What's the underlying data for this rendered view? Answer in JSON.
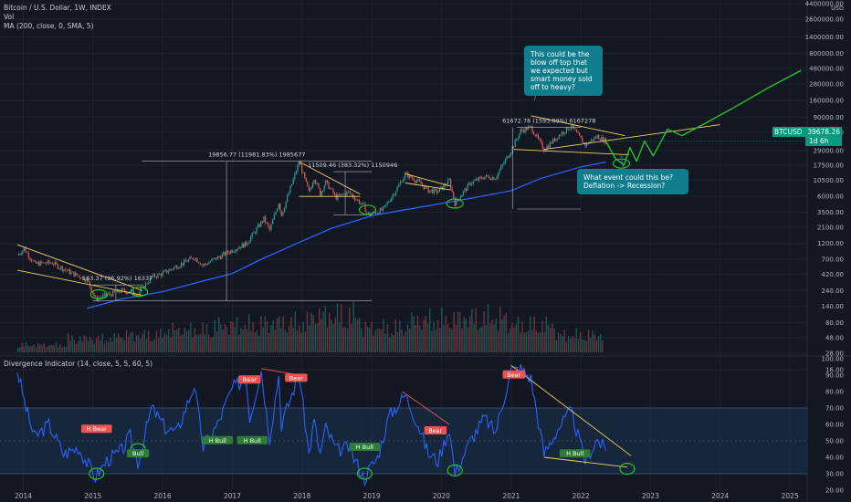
{
  "header": {
    "symbol_line": "Bitcoin / U.S. Dollar, 1W, INDEX",
    "vol_label": "Vol",
    "ma_label": "MA (200, close, 0, SMA, 5)",
    "indicator_label": "Divergence Indicator (14, close, 5, 5, 60, 5)"
  },
  "price_badge": {
    "symbol": "BTCUSD",
    "price": "39678.26",
    "timer": "1d 6h",
    "color": "#089981"
  },
  "callouts": [
    {
      "text": "This could be the blow off top that we expected but smart money sold off to heavy?"
    },
    {
      "text": "What event could this be? Deflation -> Recession?"
    }
  ],
  "measurements": [
    {
      "text": "163.37 (96.92%) 16337"
    },
    {
      "text": "19856.77 (11981.83%) 1985677"
    },
    {
      "text": "11509.46 (383.32%) 1150946"
    },
    {
      "text": "61672.78 (1593.09%) 6167278"
    }
  ],
  "osc_tags": [
    {
      "text": "H Bear",
      "kind": "bear"
    },
    {
      "text": "Bull",
      "kind": "bull"
    },
    {
      "text": "Bear",
      "kind": "bear"
    },
    {
      "text": "Bear",
      "kind": "bear"
    },
    {
      "text": "H Bull",
      "kind": "bull"
    },
    {
      "text": "H Bull",
      "kind": "bull"
    },
    {
      "text": "H Bull",
      "kind": "bull"
    },
    {
      "text": "Bear",
      "kind": "bear"
    },
    {
      "text": "Bear",
      "kind": "bear"
    },
    {
      "text": "H Bull",
      "kind": "bull"
    }
  ],
  "colors": {
    "background": "#131722",
    "up": "#26a69a",
    "down": "#ef5350",
    "ma": "#2962ff",
    "osc_line": "#2962ff",
    "projection": "#22c32a",
    "trendline": "#f0d264",
    "callout": "#0f7d8c",
    "bear_tag": "#ef5350",
    "bull_tag": "#2e7d32"
  },
  "chart_data": [
    {
      "type": "line",
      "title": "Bitcoin / U.S. Dollar, 1W, INDEX",
      "scale": "log",
      "xlabel": "",
      "ylabel": "",
      "y_unit": "USD",
      "x_ticks": [
        "2014",
        "2015",
        "2016",
        "2017",
        "2018",
        "2019",
        "2020",
        "2021",
        "2022",
        "2023",
        "2024",
        "2025"
      ],
      "y_ticks": [
        "4400000.00",
        "2600000.00",
        "1400000.00",
        "800000.00",
        "480000.00",
        "280000.00",
        "160000.00",
        "90000.00",
        "54000.00",
        "29000.00",
        "17500.00",
        "10500.00",
        "6000.00",
        "3500.00",
        "2100.00",
        "1200.00",
        "700.00",
        "420.00",
        "240.00",
        "140.00",
        "80.00",
        "48.00",
        "28.00",
        "16.00"
      ],
      "ylim": [
        10,
        4400000
      ],
      "series": [
        {
          "name": "BTCUSD",
          "points": [
            [
              "2013-12-01",
              800
            ],
            [
              "2014-01-05",
              1000
            ],
            [
              "2014-03-01",
              600
            ],
            [
              "2014-06-01",
              620
            ],
            [
              "2014-09-01",
              450
            ],
            [
              "2014-12-01",
              350
            ],
            [
              "2015-01-15",
              180
            ],
            [
              "2015-06-01",
              240
            ],
            [
              "2015-08-25",
              215
            ],
            [
              "2015-11-05",
              380
            ],
            [
              "2016-01-01",
              430
            ],
            [
              "2016-06-15",
              750
            ],
            [
              "2016-08-01",
              570
            ],
            [
              "2016-12-31",
              960
            ],
            [
              "2017-03-15",
              1200
            ],
            [
              "2017-06-15",
              2800
            ],
            [
              "2017-07-15",
              1900
            ],
            [
              "2017-09-01",
              4900
            ],
            [
              "2017-09-15",
              3200
            ],
            [
              "2017-12-17",
              19700
            ],
            [
              "2018-02-06",
              6900
            ],
            [
              "2018-03-05",
              11500
            ],
            [
              "2018-04-06",
              6600
            ],
            [
              "2018-05-05",
              9800
            ],
            [
              "2018-06-29",
              5800
            ],
            [
              "2018-09-01",
              7000
            ],
            [
              "2018-11-20",
              4300
            ],
            [
              "2018-12-15",
              3200
            ],
            [
              "2019-03-01",
              3800
            ],
            [
              "2019-05-15",
              8000
            ],
            [
              "2019-06-26",
              13000
            ],
            [
              "2019-09-01",
              10000
            ],
            [
              "2019-10-25",
              7400
            ],
            [
              "2019-12-15",
              7100
            ],
            [
              "2020-02-12",
              10300
            ],
            [
              "2020-03-12",
              4800
            ],
            [
              "2020-06-01",
              9500
            ],
            [
              "2020-08-15",
              11800
            ],
            [
              "2020-10-10",
              11400
            ],
            [
              "2020-12-31",
              29000
            ],
            [
              "2021-02-20",
              57000
            ],
            [
              "2021-04-14",
              64000
            ],
            [
              "2021-06-22",
              30000
            ],
            [
              "2021-09-01",
              47000
            ],
            [
              "2021-11-10",
              67000
            ],
            [
              "2022-01-24",
              35000
            ],
            [
              "2022-03-28",
              47000
            ],
            [
              "2022-05-12",
              39678
            ]
          ]
        },
        {
          "name": "MA (200, close, 0, SMA, 5)",
          "points": [
            [
              "2014-12-01",
              130
            ],
            [
              "2015-06-01",
              180
            ],
            [
              "2016-01-01",
              230
            ],
            [
              "2016-06-01",
              300
            ],
            [
              "2017-01-01",
              430
            ],
            [
              "2017-06-01",
              700
            ],
            [
              "2018-01-01",
              1300
            ],
            [
              "2018-06-01",
              2000
            ],
            [
              "2019-01-01",
              3100
            ],
            [
              "2019-06-01",
              3700
            ],
            [
              "2020-01-01",
              4700
            ],
            [
              "2020-06-01",
              5600
            ],
            [
              "2021-01-01",
              7300
            ],
            [
              "2021-06-01",
              11000
            ],
            [
              "2022-01-01",
              16500
            ],
            [
              "2022-05-12",
              19500
            ]
          ]
        },
        {
          "name": "Projection",
          "points": [
            [
              "2022-05-12",
              39678
            ],
            [
              "2022-07-01",
              22000
            ],
            [
              "2022-08-15",
              17500
            ],
            [
              "2022-09-15",
              32000
            ],
            [
              "2022-10-20",
              20000
            ],
            [
              "2022-12-01",
              40000
            ],
            [
              "2023-01-15",
              24000
            ],
            [
              "2023-04-01",
              60000
            ],
            [
              "2023-06-15",
              48000
            ],
            [
              "2023-10-01",
              70000
            ],
            [
              "2024-03-01",
              120000
            ],
            [
              "2024-09-01",
              240000
            ],
            [
              "2025-03-01",
              450000
            ]
          ]
        }
      ]
    },
    {
      "type": "bar",
      "title": "Vol",
      "x_ticks": [
        "2014",
        "2015",
        "2016",
        "2017",
        "2018",
        "2019",
        "2020",
        "2021",
        "2022"
      ],
      "values": [
        0.15,
        0.28,
        0.35,
        0.45,
        0.55,
        0.6,
        0.75,
        0.5,
        0.65,
        0.7,
        0.55,
        0.35
      ]
    },
    {
      "type": "line",
      "title": "Divergence Indicator (14, close, 5, 5, 60, 5)",
      "x_ticks": [
        "2014",
        "2015",
        "2016",
        "2017",
        "2018",
        "2019",
        "2020",
        "2021",
        "2022",
        "2023",
        "2024",
        "2025"
      ],
      "y_ticks": [
        "100.00",
        "90.00",
        "80.00",
        "70.00",
        "60.00",
        "50.00",
        "40.00",
        "30.00",
        "20.00"
      ],
      "ylim": [
        20,
        100
      ],
      "bands": [
        30,
        70
      ],
      "series": [
        {
          "name": "RSI",
          "points": [
            [
              "2013-12-01",
              93
            ],
            [
              "2014-01-15",
              70
            ],
            [
              "2014-03-01",
              52
            ],
            [
              "2014-05-15",
              60
            ],
            [
              "2014-08-01",
              42
            ],
            [
              "2014-10-15",
              46
            ],
            [
              "2015-01-15",
              28
            ],
            [
              "2015-03-15",
              38
            ],
            [
              "2015-06-01",
              44
            ],
            [
              "2015-07-15",
              53
            ],
            [
              "2015-08-25",
              37
            ],
            [
              "2015-11-05",
              70
            ],
            [
              "2016-01-15",
              58
            ],
            [
              "2016-03-15",
              55
            ],
            [
              "2016-06-15",
              84
            ],
            [
              "2016-08-01",
              46
            ],
            [
              "2016-10-15",
              60
            ],
            [
              "2016-12-31",
              82
            ],
            [
              "2017-03-15",
              88
            ],
            [
              "2017-04-01",
              64
            ],
            [
              "2017-06-01",
              93
            ],
            [
              "2017-07-15",
              52
            ],
            [
              "2017-09-01",
              90
            ],
            [
              "2017-09-15",
              60
            ],
            [
              "2017-12-17",
              91
            ],
            [
              "2018-02-06",
              42
            ],
            [
              "2018-03-05",
              62
            ],
            [
              "2018-04-06",
              42
            ],
            [
              "2018-05-05",
              58
            ],
            [
              "2018-07-01",
              44
            ],
            [
              "2018-09-01",
              46
            ],
            [
              "2018-11-25",
              27
            ],
            [
              "2018-12-15",
              32
            ],
            [
              "2019-02-01",
              40
            ],
            [
              "2019-04-01",
              65
            ],
            [
              "2019-06-26",
              78
            ],
            [
              "2019-09-01",
              60
            ],
            [
              "2019-10-25",
              42
            ],
            [
              "2019-12-15",
              38
            ],
            [
              "2020-02-12",
              58
            ],
            [
              "2020-03-12",
              30
            ],
            [
              "2020-06-01",
              50
            ],
            [
              "2020-08-15",
              64
            ],
            [
              "2020-10-10",
              55
            ],
            [
              "2020-12-31",
              93
            ],
            [
              "2021-02-20",
              94
            ],
            [
              "2021-04-14",
              88
            ],
            [
              "2021-06-22",
              42
            ],
            [
              "2021-09-01",
              57
            ],
            [
              "2021-11-10",
              68
            ],
            [
              "2022-01-24",
              38
            ],
            [
              "2022-03-28",
              51
            ],
            [
              "2022-05-12",
              44
            ]
          ]
        }
      ]
    }
  ]
}
